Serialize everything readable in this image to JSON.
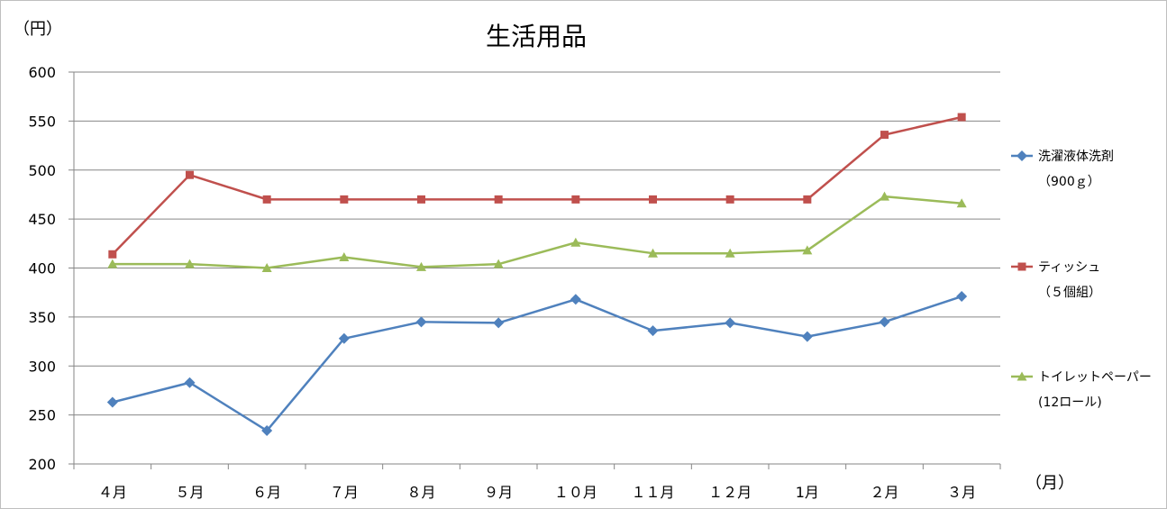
{
  "chart_data": {
    "type": "line",
    "title": "生活用品",
    "ylabel": "（円）",
    "xlabel": "（月）",
    "ylim": [
      200,
      600
    ],
    "yticks": [
      200,
      250,
      300,
      350,
      400,
      450,
      500,
      550,
      600
    ],
    "grid": true,
    "legend_position": "right",
    "categories": [
      "４月",
      "５月",
      "６月",
      "７月",
      "８月",
      "９月",
      "１０月",
      "１１月",
      "１２月",
      "1月",
      "２月",
      "３月"
    ],
    "series": [
      {
        "name": "洗濯液体洗剤",
        "name_sub": "（900ｇ）",
        "color": "#4f81bd",
        "marker": "diamond",
        "values": [
          263,
          283,
          234,
          328,
          345,
          344,
          368,
          336,
          344,
          330,
          345,
          371
        ]
      },
      {
        "name": "ティッシュ",
        "name_sub": "（５個組）",
        "color": "#c0504d",
        "marker": "square",
        "values": [
          414,
          495,
          470,
          470,
          470,
          470,
          470,
          470,
          470,
          470,
          536,
          554
        ]
      },
      {
        "name": "トイレットペーパー",
        "name_sub": "(12ロール)",
        "color": "#9bbb59",
        "marker": "triangle",
        "values": [
          404,
          404,
          400,
          411,
          401,
          404,
          426,
          415,
          415,
          418,
          473,
          466
        ]
      }
    ]
  }
}
